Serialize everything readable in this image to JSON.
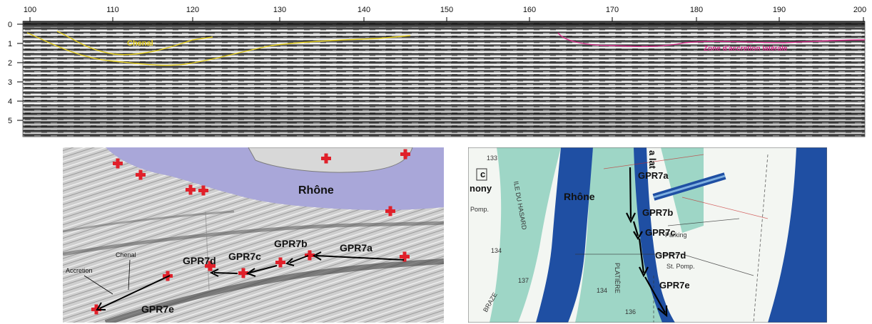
{
  "radargram": {
    "x_ticks": [
      "100",
      "110",
      "120",
      "130",
      "140",
      "150",
      "160",
      "170",
      "180",
      "190",
      "200"
    ],
    "depth_ticks": [
      "0",
      "1",
      "2",
      "3",
      "4",
      "5"
    ],
    "chenal_label": "Chenal",
    "zone_label": "Zone d'accretion latérale",
    "colors": {
      "chenal": "#e3cc1b",
      "zone": "#d62b8a"
    }
  },
  "hillshade": {
    "river_label": "Rhône",
    "gpr_labels": [
      "GPR7a",
      "GPR7b",
      "GPR7c",
      "GPR7d",
      "GPR7e"
    ],
    "chenal_label": "Chenal",
    "accretion_label": "Accretion",
    "colors": {
      "river": "#a9a7d9",
      "marker": "#e0202a"
    }
  },
  "topomap": {
    "river_label": "Rhône",
    "gpr_labels": [
      "GPR7a",
      "GPR7b",
      "GPR7c",
      "GPR7d",
      "GPR7e"
    ],
    "parking_label": "Parking",
    "pomp_label": "St. Pomp.",
    "pomp_label_left": "Pomp.",
    "grid_letter": "c",
    "elevations": [
      "133",
      "134",
      "137",
      "134",
      "136"
    ],
    "place_labels": [
      "ILE DU HASARD",
      "BRAZE",
      "PLATIÈRE"
    ],
    "partial_label_left": "nony",
    "partial_label_top": "a  lat",
    "colors": {
      "river": "#1f4fa3",
      "land": "#9ed6c6"
    }
  }
}
